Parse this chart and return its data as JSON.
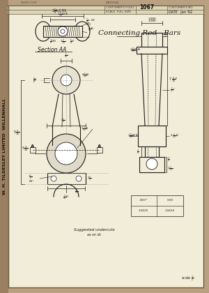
{
  "bg_color": "#e8e0cc",
  "paper_color": "#f2edd8",
  "line_color": "#1a1a1a",
  "title": "Connecting Rod - Bars",
  "company_name": "W. H. TILDESLEY LIMITED  WILLENHALL",
  "folio": "1067",
  "scale": "FULL SIZE",
  "date": "Jan '62",
  "section_label": "Section AA"
}
